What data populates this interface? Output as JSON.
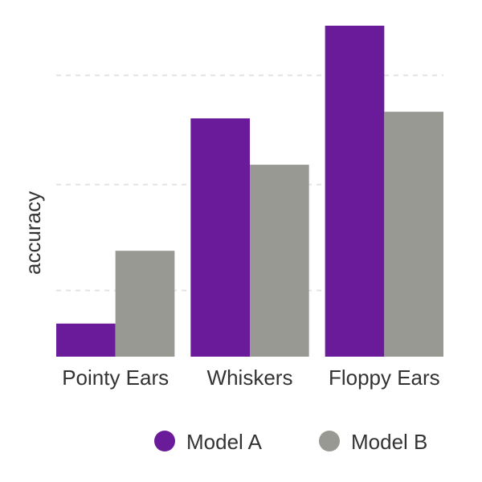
{
  "chart_data": {
    "type": "bar",
    "title": "",
    "xlabel": "",
    "ylabel": "accuracy",
    "categories": [
      "Pointy Ears",
      "Whiskers",
      "Floppy Ears"
    ],
    "series": [
      {
        "name": "Model A",
        "color": "#6a1b9a",
        "values": [
          0.1,
          0.72,
          1.0
        ]
      },
      {
        "name": "Model B",
        "color": "#999994",
        "values": [
          0.32,
          0.58,
          0.74
        ]
      }
    ],
    "ylim": [
      0,
      1
    ],
    "y_gridlines": [
      0.2,
      0.52,
      0.85
    ],
    "grid": true,
    "legend_position": "bottom-right"
  }
}
